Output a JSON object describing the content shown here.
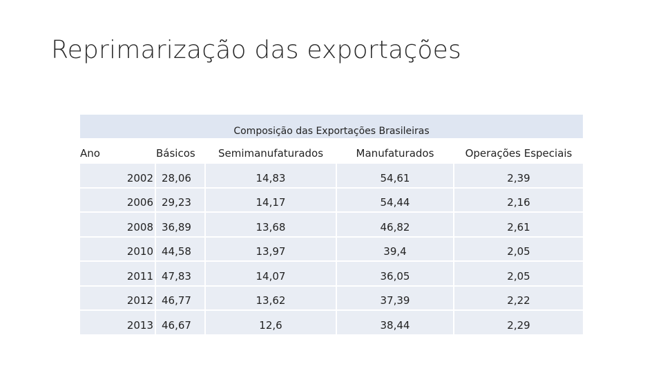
{
  "slide": {
    "title": "Reprimarização das exportações"
  },
  "table": {
    "caption": "Composição das Exportações Brasileiras",
    "headers": {
      "year": "Ano",
      "basicos": "Básicos",
      "semimanufaturados": "Semimanufaturados",
      "manufaturados": "Manufaturados",
      "operacoes_especiais": "Operações Especiais"
    },
    "rows": [
      {
        "year": "2002",
        "basicos": "28,06",
        "semi": "14,83",
        "manu": "54,61",
        "esp": "2,39"
      },
      {
        "year": "2006",
        "basicos": "29,23",
        "semi": "14,17",
        "manu": "54,44",
        "esp": "2,16"
      },
      {
        "year": "2008",
        "basicos": "36,89",
        "semi": "13,68",
        "manu": "46,82",
        "esp": "2,61"
      },
      {
        "year": "2010",
        "basicos": "44,58",
        "semi": "13,97",
        "manu": "39,4",
        "esp": "2,05"
      },
      {
        "year": "2011",
        "basicos": "47,83",
        "semi": "14,07",
        "manu": "36,05",
        "esp": "2,05"
      },
      {
        "year": "2012",
        "basicos": "46,77",
        "semi": "13,62",
        "manu": "37,39",
        "esp": "2,22"
      },
      {
        "year": "2013",
        "basicos": "46,67",
        "semi": "12,6",
        "manu": "38,44",
        "esp": "2,29"
      }
    ]
  },
  "colors": {
    "caption_band": "#dfe6f2",
    "row_band": "#e9edf4",
    "text": "#222222"
  }
}
